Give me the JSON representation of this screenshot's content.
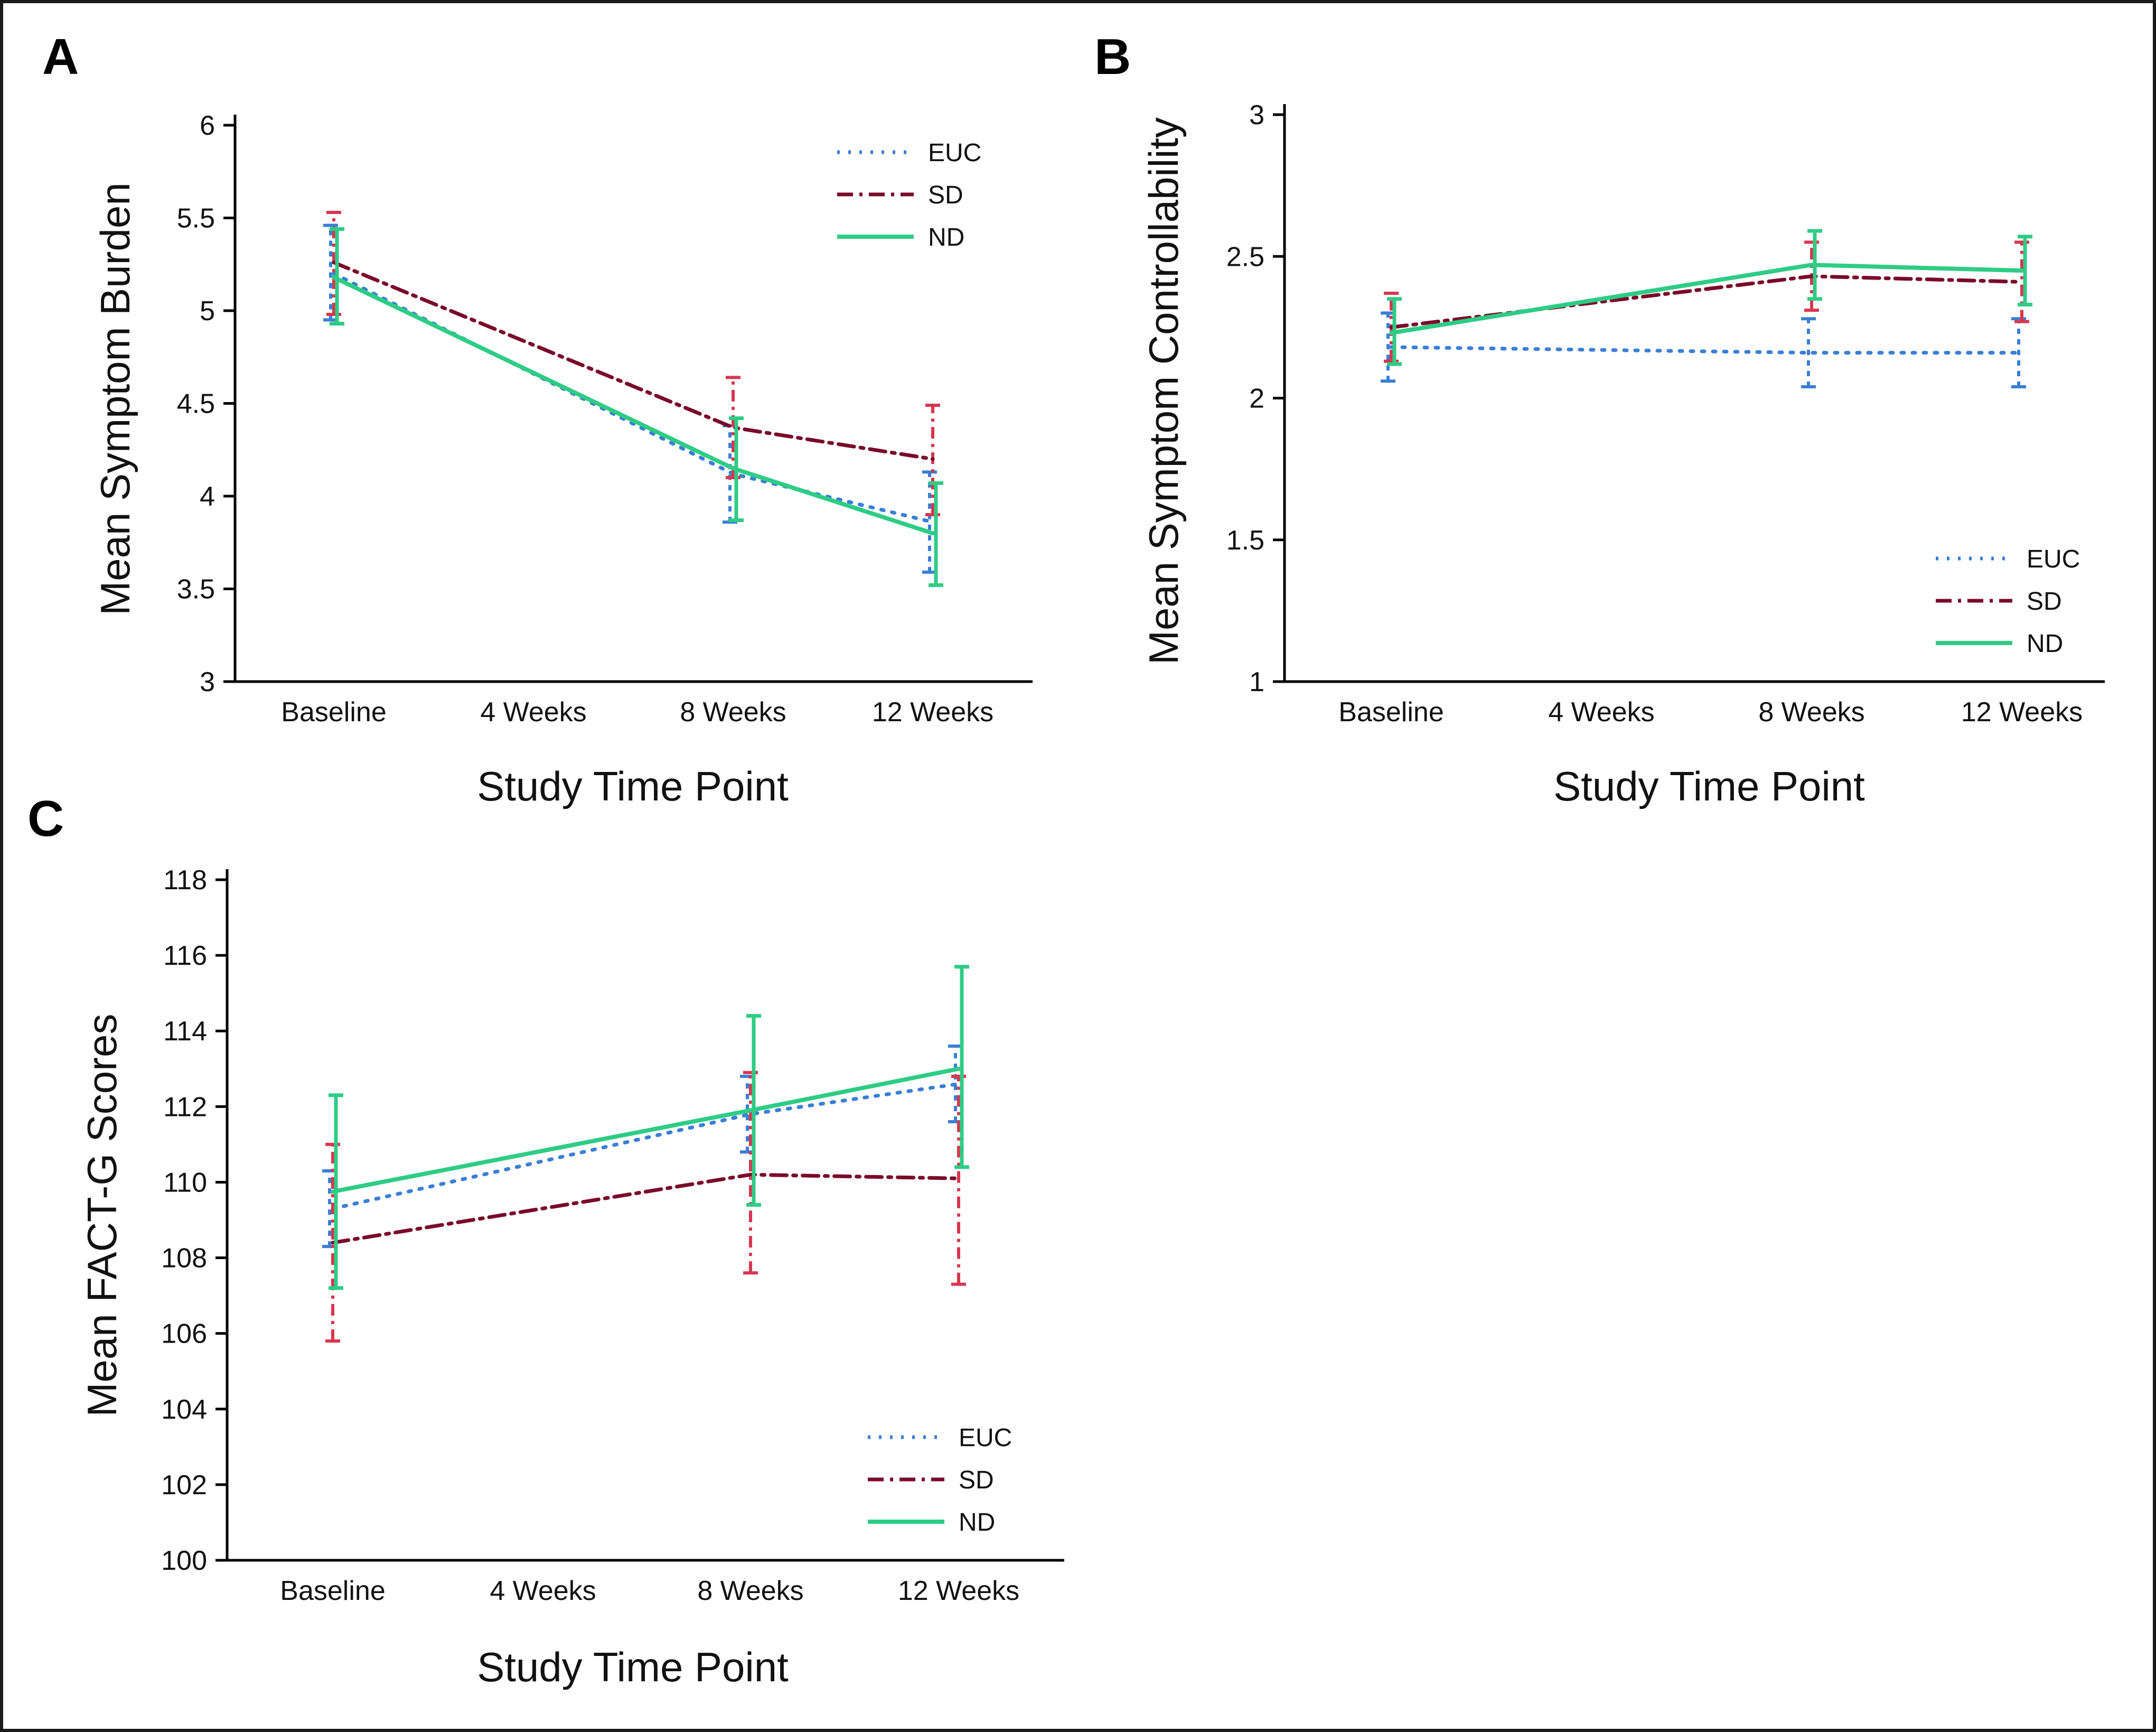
{
  "figure": {
    "border_color": "#1a1a1a"
  },
  "series_styles": {
    "EUC": {
      "color": "#3a7fd5",
      "dash": "dotted"
    },
    "SD": {
      "color": "#7a0a2a",
      "dash": "dashdot",
      "err_color": "#d8364f"
    },
    "ND": {
      "color": "#2ecc85",
      "dash": "solid"
    }
  },
  "chart_data": [
    {
      "panel": "A",
      "type": "line",
      "categories": [
        "Baseline",
        "4 Weeks",
        "8 Weeks",
        "12 Weeks"
      ],
      "ylabel": "Mean Symptom Burden",
      "xlabel": "Study Time Point",
      "ylim": [
        3,
        6
      ],
      "yticks": [
        "3",
        "3.5",
        "4",
        "4.5",
        "5",
        "5.5",
        "6"
      ],
      "legend_position": "top-right",
      "series": [
        {
          "name": "EUC",
          "x": [
            0,
            2,
            3
          ],
          "values": [
            5.2,
            4.12,
            3.86
          ],
          "err_low": [
            4.95,
            3.86,
            3.59
          ],
          "err_high": [
            5.46,
            4.38,
            4.13
          ]
        },
        {
          "name": "SD",
          "x": [
            0,
            2,
            3
          ],
          "values": [
            5.26,
            4.37,
            4.2
          ],
          "err_low": [
            4.98,
            4.1,
            3.9
          ],
          "err_high": [
            5.53,
            4.64,
            4.49
          ]
        },
        {
          "name": "ND",
          "x": [
            0,
            2,
            3
          ],
          "values": [
            5.18,
            4.15,
            3.8
          ],
          "err_low": [
            4.93,
            3.87,
            3.52
          ],
          "err_high": [
            5.44,
            4.42,
            4.07
          ]
        }
      ]
    },
    {
      "panel": "B",
      "type": "line",
      "categories": [
        "Baseline",
        "4 Weeks",
        "8 Weeks",
        "12 Weeks"
      ],
      "ylabel": "Mean Symptom Controllability",
      "xlabel": "Study Time Point",
      "ylim": [
        1,
        3
      ],
      "yticks": [
        "1",
        "1.5",
        "2",
        "2.5",
        "3"
      ],
      "legend_position": "bottom-right",
      "series": [
        {
          "name": "EUC",
          "x": [
            0,
            2,
            3
          ],
          "values": [
            2.18,
            2.16,
            2.16
          ],
          "err_low": [
            2.06,
            2.04,
            2.04
          ],
          "err_high": [
            2.3,
            2.28,
            2.28
          ]
        },
        {
          "name": "SD",
          "x": [
            0,
            2,
            3
          ],
          "values": [
            2.25,
            2.43,
            2.41
          ],
          "err_low": [
            2.13,
            2.31,
            2.27
          ],
          "err_high": [
            2.37,
            2.55,
            2.55
          ]
        },
        {
          "name": "ND",
          "x": [
            0,
            2,
            3
          ],
          "values": [
            2.23,
            2.47,
            2.45
          ],
          "err_low": [
            2.12,
            2.35,
            2.33
          ],
          "err_high": [
            2.35,
            2.59,
            2.57
          ]
        }
      ]
    },
    {
      "panel": "C",
      "type": "line",
      "categories": [
        "Baseline",
        "4 Weeks",
        "8 Weeks",
        "12 Weeks"
      ],
      "ylabel": "Mean FACT-G Scores",
      "xlabel": "Study Time Point",
      "ylim": [
        100,
        118
      ],
      "yticks": [
        "100",
        "102",
        "104",
        "106",
        "108",
        "110",
        "112",
        "114",
        "116",
        "118"
      ],
      "legend_position": "bottom-right",
      "series": [
        {
          "name": "EUC",
          "x": [
            0,
            2,
            3
          ],
          "values": [
            109.3,
            111.8,
            112.6
          ],
          "err_low": [
            108.3,
            110.8,
            111.6
          ],
          "err_high": [
            110.3,
            112.8,
            113.6
          ]
        },
        {
          "name": "SD",
          "x": [
            0,
            2,
            3
          ],
          "values": [
            108.4,
            110.2,
            110.1
          ],
          "err_low": [
            105.8,
            107.6,
            107.3
          ],
          "err_high": [
            111.0,
            112.9,
            112.8
          ]
        },
        {
          "name": "ND",
          "x": [
            0,
            2,
            3
          ],
          "values": [
            109.75,
            111.9,
            113.0
          ],
          "err_low": [
            107.2,
            109.4,
            110.4
          ],
          "err_high": [
            112.3,
            114.4,
            115.7
          ]
        }
      ]
    }
  ]
}
